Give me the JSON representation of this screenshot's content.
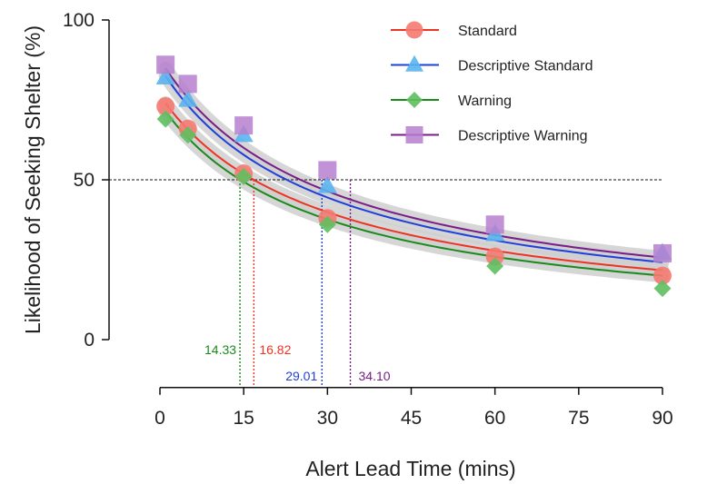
{
  "chart_data": {
    "type": "scatter",
    "xlabel": "Alert Lead Time (mins)",
    "ylabel": "Likelihood of Seeking Shelter (%)",
    "xlim": [
      0,
      90
    ],
    "ylim": [
      -15,
      100
    ],
    "xticks": [
      0,
      15,
      30,
      45,
      60,
      75,
      90
    ],
    "yticks": [
      0,
      50,
      100
    ],
    "reference_line": {
      "y": 50,
      "style": "dashed"
    },
    "legend_position": "top-right",
    "series": [
      {
        "name": "Standard",
        "color": "#ee3322",
        "marker": "circle",
        "marker_color": "#f47a70",
        "points": [
          {
            "x": 1,
            "y": 73
          },
          {
            "x": 5,
            "y": 66
          },
          {
            "x": 15,
            "y": 52
          },
          {
            "x": 30,
            "y": 38
          },
          {
            "x": 60,
            "y": 26
          },
          {
            "x": 90,
            "y": 20
          }
        ],
        "fit": {
          "a": 76.4,
          "b": 0.04,
          "c": 0.825
        },
        "threshold": {
          "value": 16.82,
          "label": "16.82"
        }
      },
      {
        "name": "Descriptive Standard",
        "color": "#1f3fdd",
        "marker": "triangle",
        "marker_color": "#5ab4f0",
        "points": [
          {
            "x": 1,
            "y": 82
          },
          {
            "x": 5,
            "y": 75
          },
          {
            "x": 15,
            "y": 64
          },
          {
            "x": 30,
            "y": 48
          },
          {
            "x": 60,
            "y": 33
          },
          {
            "x": 90,
            "y": 27
          }
        ],
        "fit": {
          "a": 85.2,
          "b": 0.04,
          "c": 0.825
        },
        "threshold": {
          "value": 29.01,
          "label": "29.01"
        }
      },
      {
        "name": "Warning",
        "color": "#1b8a1b",
        "marker": "diamond",
        "marker_color": "#5fbf5f",
        "points": [
          {
            "x": 1,
            "y": 69
          },
          {
            "x": 5,
            "y": 64
          },
          {
            "x": 15,
            "y": 51
          },
          {
            "x": 30,
            "y": 36
          },
          {
            "x": 60,
            "y": 23
          },
          {
            "x": 90,
            "y": 16
          }
        ],
        "fit": {
          "a": 73.8,
          "b": 0.04,
          "c": 0.855
        },
        "threshold": {
          "value": 14.33,
          "label": "14.33"
        }
      },
      {
        "name": "Descriptive Warning",
        "color": "#7a1d8a",
        "marker": "square",
        "marker_color": "#b77fcf",
        "points": [
          {
            "x": 1,
            "y": 86
          },
          {
            "x": 5,
            "y": 80
          },
          {
            "x": 15,
            "y": 67
          },
          {
            "x": 30,
            "y": 53
          },
          {
            "x": 60,
            "y": 36
          },
          {
            "x": 90,
            "y": 27
          }
        ],
        "fit": {
          "a": 87.6,
          "b": 0.04,
          "c": 0.805
        },
        "threshold": {
          "value": 34.1,
          "label": "34.10"
        }
      }
    ]
  }
}
